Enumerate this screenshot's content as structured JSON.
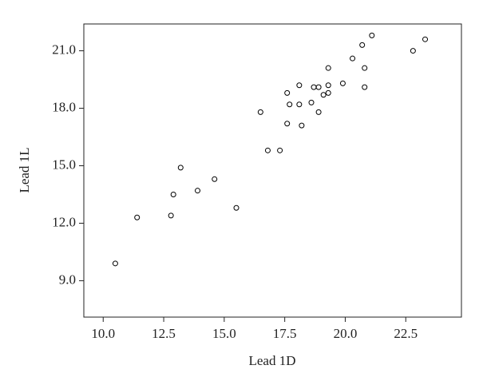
{
  "chart_data": {
    "type": "scatter",
    "x_label": "Lead 1D",
    "y_label": "Lead 1L",
    "series": [
      {
        "color": "#000000",
        "x": [
          10.5,
          11.4,
          12.8,
          12.9,
          13.2,
          13.9,
          14.6,
          15.5,
          16.5,
          16.8,
          17.3,
          17.6,
          17.6,
          17.7,
          18.1,
          18.1,
          18.2,
          18.6,
          18.7,
          18.9,
          18.9,
          19.1,
          19.3,
          19.3,
          19.3,
          19.9,
          20.3,
          20.7,
          20.8,
          20.8,
          21.1,
          22.8,
          23.3
        ],
        "values": [
          9.9,
          12.3,
          12.4,
          13.5,
          14.9,
          13.7,
          14.3,
          12.8,
          17.8,
          15.8,
          15.8,
          17.2,
          18.8,
          18.2,
          19.2,
          18.2,
          17.1,
          18.3,
          19.1,
          19.1,
          17.8,
          18.7,
          18.8,
          19.2,
          20.1,
          19.3,
          20.6,
          21.3,
          20.1,
          19.1,
          21.8,
          21.0,
          21.6
        ]
      }
    ],
    "xlim": [
      9.2,
      24.8
    ],
    "ylim": [
      7.1,
      22.4
    ],
    "xticks": [
      {
        "value": 10,
        "label": "10.0"
      },
      {
        "value": 12.5,
        "label": "12.5"
      },
      {
        "value": 15,
        "label": "15.0"
      },
      {
        "value": 17.5,
        "label": "17.5"
      },
      {
        "value": 20,
        "label": "20.0"
      },
      {
        "value": 22.5,
        "label": "22.5"
      }
    ],
    "yticks": [
      {
        "value": 9,
        "label": "9.0"
      },
      {
        "value": 12,
        "label": "12.0"
      },
      {
        "value": 15,
        "label": "15.0"
      },
      {
        "value": 18,
        "label": "18.0"
      },
      {
        "value": 21,
        "label": "21.0"
      }
    ]
  }
}
